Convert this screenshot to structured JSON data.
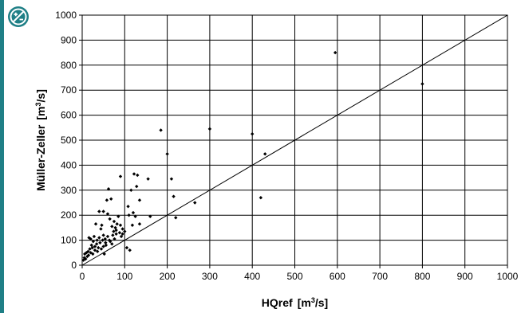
{
  "chart_data": {
    "type": "scatter",
    "xlabel": "HQref",
    "xlabel_unit": "[m",
    "xlabel_unit_sup": "3",
    "xlabel_unit_tail": "/s]",
    "ylabel": "Müller-Zeller",
    "ylabel_unit": "[m",
    "ylabel_unit_sup": "3",
    "ylabel_unit_tail": "/s]",
    "xlim": [
      0,
      1000
    ],
    "ylim": [
      0,
      1000
    ],
    "xticks": [
      "0",
      "100",
      "200",
      "300",
      "400",
      "500",
      "600",
      "700",
      "800",
      "900",
      "1000"
    ],
    "yticks": [
      "0",
      "100",
      "200",
      "300",
      "400",
      "500",
      "600",
      "700",
      "800",
      "900",
      "1000"
    ],
    "grid": true,
    "reference_line": {
      "x": [
        0,
        1000
      ],
      "y": [
        0,
        1000
      ]
    },
    "series": [
      {
        "marker_color": "#000000",
        "points": [
          [
            3,
            20
          ],
          [
            5,
            30
          ],
          [
            6,
            45
          ],
          [
            8,
            25
          ],
          [
            10,
            50
          ],
          [
            12,
            35
          ],
          [
            14,
            55
          ],
          [
            15,
            40
          ],
          [
            16,
            110
          ],
          [
            18,
            65
          ],
          [
            20,
            50
          ],
          [
            20,
            105
          ],
          [
            22,
            80
          ],
          [
            24,
            70
          ],
          [
            25,
            45
          ],
          [
            26,
            95
          ],
          [
            28,
            115
          ],
          [
            30,
            60
          ],
          [
            30,
            75
          ],
          [
            32,
            165
          ],
          [
            34,
            85
          ],
          [
            35,
            100
          ],
          [
            36,
            55
          ],
          [
            38,
            70
          ],
          [
            40,
            110
          ],
          [
            40,
            215
          ],
          [
            42,
            90
          ],
          [
            44,
            145
          ],
          [
            45,
            65
          ],
          [
            46,
            160
          ],
          [
            48,
            100
          ],
          [
            50,
            120
          ],
          [
            50,
            75
          ],
          [
            50,
            215
          ],
          [
            52,
            45
          ],
          [
            54,
            105
          ],
          [
            55,
            90
          ],
          [
            56,
            80
          ],
          [
            58,
            260
          ],
          [
            60,
            115
          ],
          [
            60,
            205
          ],
          [
            62,
            305
          ],
          [
            64,
            100
          ],
          [
            65,
            185
          ],
          [
            66,
            95
          ],
          [
            68,
            265
          ],
          [
            70,
            85
          ],
          [
            70,
            155
          ],
          [
            72,
            120
          ],
          [
            74,
            135
          ],
          [
            75,
            175
          ],
          [
            76,
            105
          ],
          [
            78,
            150
          ],
          [
            80,
            125
          ],
          [
            80,
            140
          ],
          [
            82,
            165
          ],
          [
            85,
            195
          ],
          [
            88,
            130
          ],
          [
            90,
            355
          ],
          [
            90,
            160
          ],
          [
            92,
            115
          ],
          [
            95,
            125
          ],
          [
            95,
            145
          ],
          [
            100,
            135
          ],
          [
            105,
            70
          ],
          [
            108,
            235
          ],
          [
            110,
            200
          ],
          [
            112,
            60
          ],
          [
            115,
            300
          ],
          [
            118,
            160
          ],
          [
            120,
            210
          ],
          [
            122,
            365
          ],
          [
            125,
            195
          ],
          [
            128,
            315
          ],
          [
            130,
            360
          ],
          [
            135,
            260
          ],
          [
            135,
            165
          ],
          [
            155,
            345
          ],
          [
            160,
            195
          ],
          [
            185,
            540
          ],
          [
            200,
            445
          ],
          [
            210,
            345
          ],
          [
            215,
            275
          ],
          [
            220,
            190
          ],
          [
            265,
            250
          ],
          [
            300,
            545
          ],
          [
            400,
            525
          ],
          [
            420,
            270
          ],
          [
            430,
            445
          ],
          [
            595,
            850
          ],
          [
            800,
            725
          ]
        ]
      }
    ]
  }
}
